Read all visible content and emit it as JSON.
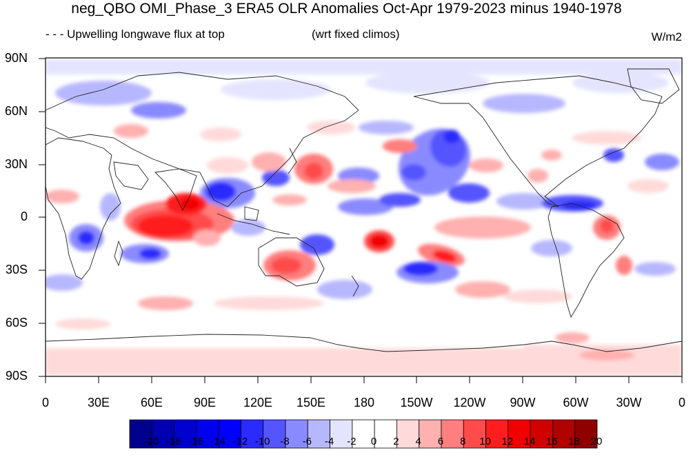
{
  "figure": {
    "title": "neg_QBO OMI_Phase_3 ERA5 OLR Anomalies Oct-Apr 1979-2023 minus 1940-1978",
    "left_subtitle": "- - - Upwelling longwave flux at top",
    "center_subtitle": "(wrt fixed climos)",
    "units": "W/m2"
  },
  "axes": {
    "lat_labels": [
      "90N",
      "60N",
      "30N",
      "0",
      "30S",
      "60S",
      "90S"
    ],
    "lon_labels": [
      "0",
      "30E",
      "60E",
      "90E",
      "120E",
      "150E",
      "180",
      "150W",
      "120W",
      "90W",
      "60W",
      "30W",
      "0"
    ]
  },
  "colorbar": {
    "labels": [
      "-20",
      "-18",
      "-16",
      "-14",
      "-12",
      "-10",
      "-8",
      "-6",
      "-4",
      "-2",
      "0",
      "2",
      "4",
      "6",
      "8",
      "10",
      "12",
      "14",
      "16",
      "18",
      "20"
    ],
    "colors": [
      "#00008f",
      "#0000b0",
      "#0000d0",
      "#0000ee",
      "#0000ff",
      "#2b2bff",
      "#5555ff",
      "#8a8aff",
      "#b7b7ff",
      "#e4e4ff",
      "#ffffff",
      "#ffffff",
      "#ffdada",
      "#ffb0b0",
      "#ff7e7e",
      "#ff4b4b",
      "#ff1e1e",
      "#f00000",
      "#d00000",
      "#b00000",
      "#8f0000"
    ]
  }
}
